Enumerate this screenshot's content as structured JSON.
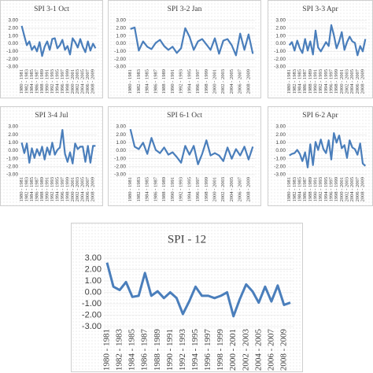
{
  "chart_data": [
    {
      "type": "line",
      "title": "SPI 3-1 Oct",
      "color": "#4a7ebb",
      "grid": true,
      "categories": [
        "1980 - 1981",
        null,
        "1982 - 1983",
        null,
        "1984 - 1985",
        null,
        "1986 - 1987",
        null,
        "1988 - 1989",
        null,
        "1990 - 1991",
        null,
        "1992 - 1993",
        null,
        "1994 - 1995",
        null,
        "1996 - 1997",
        null,
        "1998 - 1999",
        null,
        "2000 - 2001",
        null,
        "2002 - 2003",
        null,
        "2004 - 2005",
        null,
        "2006 - 2007",
        null,
        "2008 - 2009",
        null
      ],
      "values": [
        2.3,
        1.0,
        -0.2,
        0.3,
        -0.8,
        -0.3,
        -1.0,
        0.2,
        -1.6,
        -0.4,
        0.3,
        -0.8,
        0.6,
        0.7,
        -0.6,
        -0.2,
        0.5,
        -0.8,
        -0.3,
        -1.4,
        0.7,
        0.2,
        -0.5,
        0.6,
        -0.4,
        -1.1,
        0.3,
        -0.9,
        0.0,
        -0.6
      ],
      "ylim": [
        -3,
        3
      ],
      "yticks": [
        {
          "value": 3,
          "label": "3.00"
        },
        {
          "value": 2,
          "label": "2.00"
        },
        {
          "value": 1,
          "label": "1.00"
        },
        {
          "value": 0,
          "label": "0.00"
        },
        {
          "value": -1,
          "label": "-1.00"
        },
        {
          "value": -2,
          "label": "-2.00"
        },
        {
          "value": -3,
          "label": "-3.00"
        }
      ]
    },
    {
      "type": "line",
      "title": "SPI 3-2 Jan",
      "color": "#4a7ebb",
      "grid": true,
      "categories": [
        "1980 - 1981",
        null,
        "1982 - 1983",
        null,
        "1984 - 1985",
        null,
        "1986 - 1987",
        null,
        "1988 - 1989",
        null,
        "1990 - 1991",
        null,
        "1992 - 1993",
        null,
        "1994 - 1995",
        null,
        "1996 - 1997",
        null,
        "1998 - 1999",
        null,
        "2000 - 2001",
        null,
        "2002 - 2003",
        null,
        "2004 - 2005",
        null,
        "2006 - 2007",
        null,
        "2008 - 2009",
        null
      ],
      "values": [
        1.9,
        2.1,
        -0.9,
        0.3,
        -0.4,
        -0.7,
        0.1,
        0.5,
        -0.3,
        -0.8,
        -0.4,
        -1.2,
        -0.6,
        2.0,
        0.9,
        -0.8,
        0.3,
        0.6,
        -0.1,
        -0.8,
        0.7,
        -1.3,
        0.4,
        0.6,
        -0.2,
        -1.5,
        1.3,
        -0.8,
        1.2,
        -1.3
      ],
      "ylim": [
        -3,
        3
      ],
      "yticks": [
        {
          "value": 3,
          "label": "3.00"
        },
        {
          "value": 2,
          "label": "2.00"
        },
        {
          "value": 1,
          "label": "1.00"
        },
        {
          "value": 0,
          "label": "0.00"
        },
        {
          "value": -1,
          "label": "-1.00"
        },
        {
          "value": -2,
          "label": "-2.00"
        },
        {
          "value": -3,
          "label": "-3.00"
        }
      ]
    },
    {
      "type": "line",
      "title": "SPI 3-3 Apr",
      "color": "#4a7ebb",
      "grid": true,
      "categories": [
        "1980 - 1981",
        null,
        "1982 - 1983",
        null,
        "1984 - 1985",
        null,
        "1986 - 1987",
        null,
        "1988 - 1989",
        null,
        "1990 - 1991",
        null,
        "1992 - 1993",
        null,
        "1994 - 1995",
        null,
        "1996 - 1997",
        null,
        "1998 - 1999",
        null,
        "2000 - 2001",
        null,
        "2002 - 2003",
        null,
        "2004 - 2005",
        null,
        "2006 - 2007",
        null,
        "2008 - 2009",
        null
      ],
      "values": [
        -0.2,
        0.2,
        -0.9,
        0.4,
        -0.6,
        -1.2,
        0.6,
        -0.9,
        0.3,
        -1.4,
        1.7,
        -0.5,
        -1.0,
        -0.4,
        0.2,
        -0.3,
        2.4,
        1.1,
        -0.6,
        0.3,
        1.5,
        -0.8,
        0.2,
        0.9,
        0.3,
        0.1,
        -1.5,
        -0.3,
        -1.0,
        0.6
      ],
      "ylim": [
        -3,
        3
      ],
      "yticks": [
        {
          "value": 3,
          "label": "3.00"
        },
        {
          "value": 2,
          "label": "2.00"
        },
        {
          "value": 1,
          "label": "1.00"
        },
        {
          "value": 0,
          "label": "0.00"
        },
        {
          "value": -1,
          "label": "-1.00"
        },
        {
          "value": -2,
          "label": "-2.00"
        },
        {
          "value": -3,
          "label": "-3.00"
        }
      ]
    },
    {
      "type": "line",
      "title": "SPI 3-4 Jul",
      "color": "#4a7ebb",
      "grid": true,
      "categories": [
        "1980 - 1981",
        null,
        "1982 - 1983",
        null,
        "1984 - 1985",
        null,
        "1986 - 1987",
        null,
        "1988 - 1989",
        null,
        "1990 - 1991",
        null,
        "1992 - 1993",
        null,
        "1994 - 1995",
        null,
        "1996 - 1997",
        null,
        "1998 - 1999",
        null,
        "2000 - 2001",
        null,
        "2002 - 2003",
        null,
        "2004 - 2005",
        null,
        "2006 - 2007",
        null,
        "2008 - 2009",
        null
      ],
      "values": [
        1.0,
        -0.3,
        0.9,
        -1.5,
        0.3,
        -0.9,
        0.2,
        -0.6,
        0.5,
        -1.1,
        0.4,
        -0.5,
        1.0,
        -0.5,
        0.1,
        0.4,
        2.6,
        -0.4,
        -1.4,
        -0.2,
        -1.6,
        0.9,
        0.2,
        0.5,
        0.5,
        -1.4,
        0.6,
        -1.5,
        0.6,
        0.6
      ],
      "ylim": [
        -3,
        3
      ],
      "yticks": [
        {
          "value": 3,
          "label": "3.00"
        },
        {
          "value": 2,
          "label": "2.00"
        },
        {
          "value": 1,
          "label": "1.00"
        },
        {
          "value": 0,
          "label": "0.00"
        },
        {
          "value": -1,
          "label": "-1.00"
        },
        {
          "value": -2,
          "label": "-2.00"
        },
        {
          "value": -3,
          "label": "-3.00"
        }
      ]
    },
    {
      "type": "line",
      "title": "SPI 6-1 Oct",
      "color": "#4a7ebb",
      "grid": true,
      "categories": [
        "1980 - 1981",
        null,
        "1982 - 1983",
        null,
        "1984 - 1985",
        null,
        "1986 - 1987",
        null,
        "1988 - 1989",
        null,
        "1990 - 1991",
        null,
        "1992 - 1993",
        null,
        "1994 - 1995",
        null,
        "1996 - 1997",
        null,
        "1998 - 1999",
        null,
        "2000 - 2001",
        null,
        "2002 - 2003",
        null,
        "2004 - 2005",
        null,
        "2006 - 2007",
        null,
        "2008 - 2009",
        null
      ],
      "values": [
        2.7,
        0.5,
        0.2,
        1.0,
        -0.4,
        1.6,
        0.1,
        -0.3,
        0.4,
        -0.5,
        -0.2,
        -0.8,
        -1.5,
        0.6,
        -0.5,
        0.6,
        -1.7,
        -0.4,
        1.3,
        -0.6,
        -0.3,
        -0.6,
        -1.3,
        0.4,
        -1.0,
        0.2,
        -0.6,
        0.5,
        -1.1,
        0.5
      ],
      "ylim": [
        -3,
        3
      ],
      "yticks": [
        {
          "value": 3,
          "label": "3.00"
        },
        {
          "value": 2,
          "label": "2.00"
        },
        {
          "value": 1,
          "label": "1.00"
        },
        {
          "value": 0,
          "label": "0.00"
        },
        {
          "value": -1,
          "label": "-1.00"
        },
        {
          "value": -2,
          "label": "-2.00"
        },
        {
          "value": -3,
          "label": "-3.00"
        }
      ]
    },
    {
      "type": "line",
      "title": "SPI 6-2 Apr",
      "color": "#4a7ebb",
      "grid": true,
      "categories": [
        "1980 - 1981",
        null,
        "1982 - 1983",
        null,
        "1984 - 1985",
        null,
        "1986 - 1987",
        null,
        "1988 - 1989",
        null,
        "1990 - 1991",
        null,
        "1992 - 1993",
        null,
        "1994 - 1995",
        null,
        "1996 - 1997",
        null,
        "1998 - 1999",
        null,
        "2000 - 2001",
        null,
        "2002 - 2003",
        null,
        "2004 - 2005",
        null,
        "2006 - 2007",
        null,
        "2008 - 2009",
        null
      ],
      "values": [
        -0.6,
        -0.4,
        -0.3,
        0.1,
        -0.4,
        -1.3,
        -0.2,
        -2.1,
        0.8,
        -1.8,
        1.1,
        0.1,
        1.4,
        0.2,
        -0.3,
        1.3,
        -1.1,
        2.2,
        1.0,
        1.9,
        0.3,
        0.7,
        -0.9,
        1.3,
        0.4,
        0.2,
        -0.5,
        0.9,
        -1.6,
        -1.9
      ],
      "ylim": [
        -3,
        3
      ],
      "yticks": [
        {
          "value": 3,
          "label": "3.00"
        },
        {
          "value": 2,
          "label": "2.00"
        },
        {
          "value": 1,
          "label": "1.00"
        },
        {
          "value": 0,
          "label": "0.00"
        },
        {
          "value": -1,
          "label": "-1.00"
        },
        {
          "value": -2,
          "label": "-2.00"
        },
        {
          "value": -3,
          "label": "-3.00"
        }
      ]
    },
    {
      "type": "line",
      "title": "SPI - 12",
      "color": "#4a7ebb",
      "grid": true,
      "categories": [
        "1980 - 1981",
        null,
        "1982 - 1983",
        null,
        "1984 - 1985",
        null,
        "1986 - 1987",
        null,
        "1988 - 1989",
        null,
        "1990 - 1991",
        null,
        "1992 - 1993",
        null,
        "1994 - 1995",
        null,
        "1996 - 1997",
        null,
        "1998 - 1999",
        null,
        "2000 - 2001",
        null,
        "2002 - 2003",
        null,
        "2004 - 2005",
        null,
        "2006 - 2007",
        null,
        "2008 - 2009",
        null
      ],
      "values": [
        2.6,
        0.5,
        0.2,
        0.9,
        -0.4,
        -0.3,
        1.7,
        -0.3,
        0.1,
        -0.5,
        0.0,
        -0.5,
        -1.9,
        -0.8,
        0.5,
        -0.3,
        -0.3,
        -0.5,
        -0.3,
        0.0,
        -2.1,
        -0.6,
        0.7,
        0.1,
        -0.9,
        0.5,
        -0.8,
        0.6,
        -1.1,
        -0.9
      ],
      "ylim": [
        -3,
        3
      ],
      "yticks": [
        {
          "value": 3,
          "label": "3.00"
        },
        {
          "value": 2,
          "label": "2.00"
        },
        {
          "value": 1,
          "label": "1.00"
        },
        {
          "value": 0,
          "label": "0.00"
        },
        {
          "value": -1,
          "label": "-1.00"
        },
        {
          "value": -2,
          "label": "-2.00"
        },
        {
          "value": -3,
          "label": "-3.00"
        }
      ]
    }
  ]
}
